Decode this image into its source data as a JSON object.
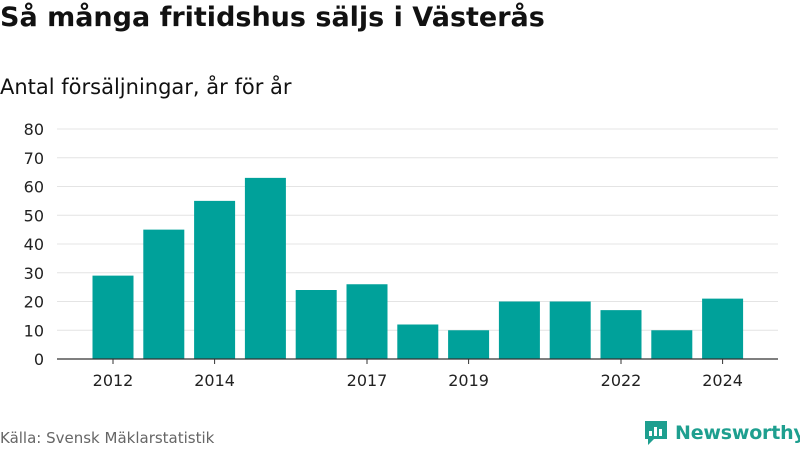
{
  "header": {
    "title": "Så många fritidshus säljs i Västerås",
    "subtitle": "Antal försäljningar, år för år"
  },
  "footer": {
    "source": "Källa: Svensk Mäklarstatistik",
    "brand": "Newsworthy"
  },
  "colors": {
    "bar": "#00a19a",
    "grid": "#e4e4e4",
    "axis": "#333333",
    "brand": "#1e9f8f"
  },
  "chart_data": {
    "type": "bar",
    "categories": [
      "2012",
      "2013",
      "2014",
      "2015",
      "2016",
      "2017",
      "2018",
      "2019",
      "2020",
      "2021",
      "2022",
      "2023",
      "2024"
    ],
    "values": [
      29,
      45,
      55,
      63,
      24,
      26,
      12,
      10,
      20,
      20,
      17,
      10,
      21
    ],
    "x_tick_labels": [
      "2012",
      "2014",
      "2017",
      "2019",
      "2022",
      "2024"
    ],
    "y_ticks": [
      "0",
      "10",
      "20",
      "30",
      "40",
      "50",
      "60",
      "70",
      "80"
    ],
    "ylim": [
      0,
      80
    ],
    "grid": true,
    "legend": "none"
  }
}
